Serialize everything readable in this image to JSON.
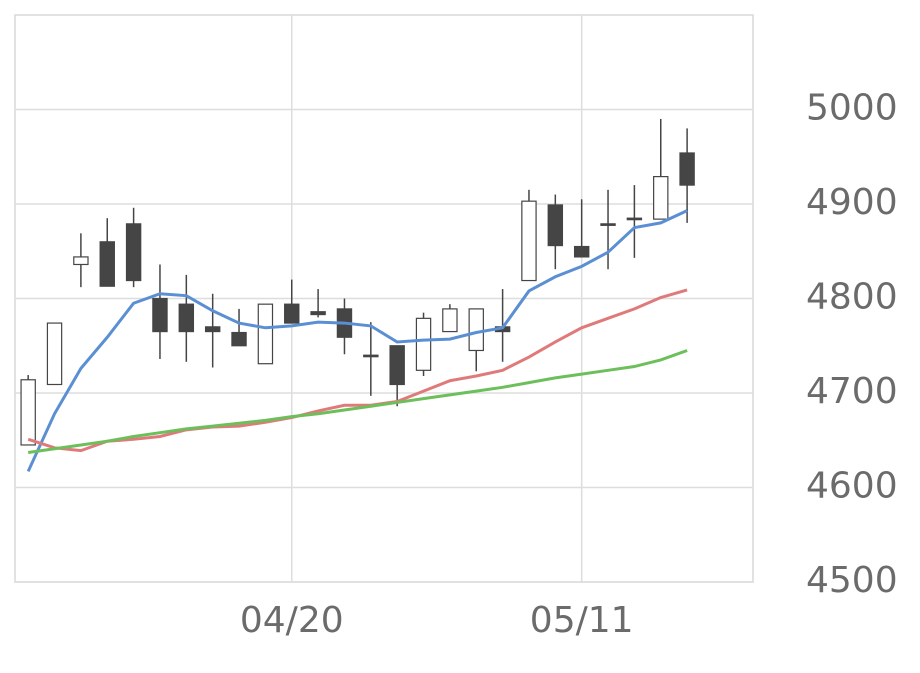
{
  "chart_data": {
    "type": "candlestick",
    "categories": [
      null,
      null,
      null,
      null,
      null,
      null,
      null,
      null,
      null,
      null,
      "04/20",
      null,
      null,
      null,
      null,
      null,
      null,
      null,
      null,
      null,
      null,
      "05/11",
      null,
      null,
      null,
      null,
      null,
      null
    ],
    "open": [
      4645,
      4709,
      4836,
      4860,
      4879,
      4800,
      4794,
      4770,
      4764,
      4731,
      4794,
      4786,
      4789,
      4740,
      4750,
      4724,
      4765,
      4745,
      4770,
      4819,
      4899,
      4855,
      4879,
      4885,
      4884,
      4954,
      null,
      null
    ],
    "high": [
      4719,
      4774,
      4869,
      4885,
      4896,
      4836,
      4825,
      4805,
      4789,
      4794,
      4820,
      4810,
      4800,
      4775,
      4750,
      4785,
      4794,
      4789,
      4810,
      4915,
      4910,
      4905,
      4915,
      4920,
      4990,
      4980,
      null,
      null
    ],
    "low": [
      4645,
      4709,
      4812,
      4813,
      4812,
      4736,
      4733,
      4727,
      4750,
      4731,
      4774,
      4780,
      4741,
      4697,
      4686,
      4718,
      4765,
      4723,
      4733,
      4819,
      4831,
      4844,
      4831,
      4843,
      4884,
      4880,
      null,
      null
    ],
    "close": [
      4714,
      4774,
      4844,
      4813,
      4819,
      4765,
      4765,
      4765,
      4750,
      4794,
      4774,
      4783,
      4759,
      4739,
      4709,
      4779,
      4789,
      4789,
      4765,
      4903,
      4856,
      4844,
      4878,
      4884,
      4929,
      4920,
      null,
      null
    ],
    "up_color": "#ffffff",
    "down_color": "#454545",
    "edge_color": "#454545",
    "series": [
      {
        "color": "#5b8fd4",
        "values": [
          4617,
          4678,
          4726,
          4759,
          4795,
          4805,
          4803,
          4787,
          4774,
          4769,
          4771,
          4775,
          4774,
          4771,
          4754,
          4756,
          4757,
          4764,
          4769,
          4808,
          4823,
          4834,
          4849,
          4875,
          4880,
          4893,
          null,
          null
        ]
      },
      {
        "color": "#e07a7a",
        "values": [
          4651,
          4642,
          4639,
          4649,
          4651,
          4654,
          4661,
          4664,
          4665,
          4669,
          4674,
          4681,
          4687,
          4687,
          4691,
          4702,
          4713,
          4718,
          4724,
          4738,
          4754,
          4769,
          4779,
          4789,
          4801,
          4809,
          null,
          null
        ]
      },
      {
        "color": "#6cbf5a",
        "values": [
          4637,
          4641,
          4645,
          4649,
          4654,
          4658,
          4662,
          4665,
          4668,
          4671,
          4675,
          4678,
          4682,
          4686,
          4690,
          4694,
          4698,
          4702,
          4706,
          4711,
          4716,
          4720,
          4724,
          4728,
          4735,
          4745,
          null,
          null
        ]
      }
    ],
    "ylim": [
      4500,
      5100
    ],
    "yticks": [
      4500,
      4600,
      4700,
      4800,
      4900,
      5000
    ],
    "grid": true
  }
}
